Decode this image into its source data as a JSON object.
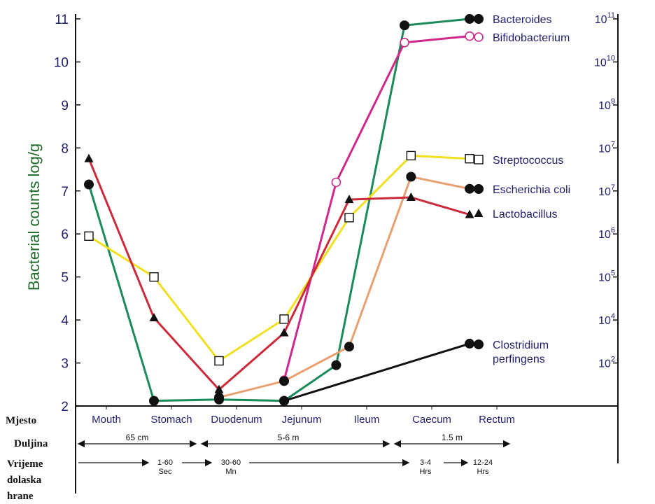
{
  "chart_data": {
    "type": "line",
    "ylabel": "Bacterial counts log/g",
    "ylim": [
      2,
      11
    ],
    "yticks": [
      "2",
      "3",
      "4",
      "5",
      "6",
      "7",
      "8",
      "9",
      "10",
      "11"
    ],
    "right_ticks": [
      {
        "base": "10",
        "exp": "11"
      },
      {
        "base": "10",
        "exp": "10"
      },
      {
        "base": "10",
        "exp": "9"
      },
      {
        "base": "10",
        "exp": "7"
      },
      {
        "base": "10",
        "exp": "7"
      },
      {
        "base": "10",
        "exp": "6"
      },
      {
        "base": "10",
        "exp": "5"
      },
      {
        "base": "10",
        "exp": "4"
      },
      {
        "base": "10",
        "exp": "2"
      }
    ],
    "categories": [
      "Mouth",
      "Stomach",
      "Duodenum",
      "Jejunum",
      "Ileum",
      "Caecum",
      "Rectum"
    ],
    "series": [
      {
        "name": "Bacteroides",
        "color": "#1a8a5a",
        "marker": "circle-filled",
        "x": [
          0.0,
          1.0,
          2.0,
          3.0,
          3.8,
          4.85,
          5.85
        ],
        "y": [
          7.15,
          2.12,
          2.15,
          2.12,
          2.95,
          10.85,
          11.0
        ]
      },
      {
        "name": "Bifidobacterium",
        "color": "#d0288a",
        "marker": "circle-open",
        "x": [
          3.0,
          3.8,
          4.85,
          5.85
        ],
        "y": [
          2.6,
          7.2,
          10.45,
          10.6
        ]
      },
      {
        "name": "Streptococcus",
        "color": "#f0e020",
        "marker": "square-open",
        "x": [
          0.0,
          1.0,
          2.0,
          3.0,
          4.0,
          4.95,
          5.85
        ],
        "y": [
          5.95,
          5.0,
          3.05,
          4.02,
          6.38,
          7.82,
          7.75
        ]
      },
      {
        "name": "Escherichia coli",
        "color": "#e8a070",
        "marker": "circle-filled",
        "x": [
          2.0,
          3.0,
          4.0,
          4.95,
          5.85
        ],
        "y": [
          2.2,
          2.58,
          3.38,
          7.33,
          7.05
        ]
      },
      {
        "name": "Lactobacillus",
        "color": "#cc2a3a",
        "marker": "triangle-filled",
        "x": [
          0.0,
          1.0,
          2.0,
          3.0,
          4.0,
          4.95,
          5.85
        ],
        "y": [
          7.75,
          4.05,
          2.38,
          3.7,
          6.8,
          6.85,
          6.45
        ]
      },
      {
        "name": "Clostridium perfingens",
        "color": "#111111",
        "marker": "circle-filled",
        "x": [
          3.0,
          5.85
        ],
        "y": [
          2.12,
          3.45
        ]
      }
    ],
    "legend": [
      {
        "series": 0,
        "lines": [
          "Bacteroides"
        ]
      },
      {
        "series": 1,
        "lines": [
          "Bifidobacterium"
        ]
      },
      {
        "series": 2,
        "lines": [
          "Streptococcus"
        ]
      },
      {
        "series": 3,
        "lines": [
          "Escherichia coli"
        ]
      },
      {
        "series": 4,
        "lines": [
          "Lactobacillus"
        ]
      },
      {
        "series": 5,
        "lines": [
          "Clostridium",
          "perfingens"
        ]
      }
    ],
    "rows": {
      "mjesto": "Mjesto",
      "duljina": "Duljina",
      "vrijeme": [
        "Vrijeme",
        "dolaska",
        "hrane"
      ]
    },
    "lengths": [
      "65 cm",
      "5-6 m",
      "1.5 m"
    ],
    "times": [
      {
        "top": "1-60",
        "bottom": "Sec"
      },
      {
        "top": "30-60",
        "bottom": "Mn"
      },
      {
        "top": "3-4",
        "bottom": "Hrs"
      },
      {
        "top": "12-24",
        "bottom": "Hrs"
      }
    ],
    "grid": false
  }
}
